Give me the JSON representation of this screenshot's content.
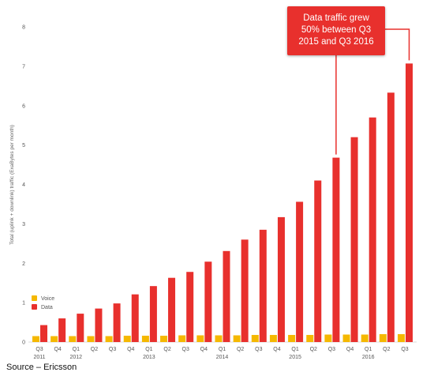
{
  "chart_data": {
    "type": "bar",
    "ylabel": "Total (uplink + downlink) traffic (ExaBytes per month)",
    "xlabel": "",
    "ylim": [
      0,
      8
    ],
    "yticks": [
      "0",
      "1",
      "2",
      "3",
      "4",
      "5",
      "6",
      "7",
      "8"
    ],
    "grid": false,
    "legend_placement": "bottom-left",
    "categories": [
      {
        "quarter": "Q3",
        "year": "2011"
      },
      {
        "quarter": "Q4",
        "year": ""
      },
      {
        "quarter": "Q1",
        "year": "2012"
      },
      {
        "quarter": "Q2",
        "year": ""
      },
      {
        "quarter": "Q3",
        "year": ""
      },
      {
        "quarter": "Q4",
        "year": ""
      },
      {
        "quarter": "Q1",
        "year": "2013"
      },
      {
        "quarter": "Q2",
        "year": ""
      },
      {
        "quarter": "Q3",
        "year": ""
      },
      {
        "quarter": "Q4",
        "year": ""
      },
      {
        "quarter": "Q1",
        "year": "2014"
      },
      {
        "quarter": "Q2",
        "year": ""
      },
      {
        "quarter": "Q3",
        "year": ""
      },
      {
        "quarter": "Q4",
        "year": ""
      },
      {
        "quarter": "Q1",
        "year": "2015"
      },
      {
        "quarter": "Q2",
        "year": ""
      },
      {
        "quarter": "Q3",
        "year": ""
      },
      {
        "quarter": "Q4",
        "year": ""
      },
      {
        "quarter": "Q1",
        "year": "2016"
      },
      {
        "quarter": "Q2",
        "year": ""
      },
      {
        "quarter": "Q3",
        "year": ""
      }
    ],
    "series": [
      {
        "name": "Voice",
        "color": "#f5b800",
        "values": [
          0.15,
          0.15,
          0.15,
          0.15,
          0.15,
          0.16,
          0.16,
          0.16,
          0.17,
          0.17,
          0.17,
          0.17,
          0.18,
          0.18,
          0.18,
          0.18,
          0.19,
          0.19,
          0.19,
          0.2,
          0.2
        ]
      },
      {
        "name": "Data",
        "color": "#e8302d",
        "values": [
          0.43,
          0.6,
          0.72,
          0.85,
          0.98,
          1.21,
          1.42,
          1.63,
          1.78,
          2.04,
          2.31,
          2.6,
          2.85,
          3.17,
          3.56,
          4.1,
          4.68,
          5.2,
          5.7,
          6.33,
          7.07
        ]
      }
    ],
    "annotation": {
      "lines": [
        "Data traffic grew",
        "50% between Q3",
        "2015 and Q3 2016"
      ],
      "color": "#e8302d"
    }
  },
  "source": "Source – Ericsson"
}
